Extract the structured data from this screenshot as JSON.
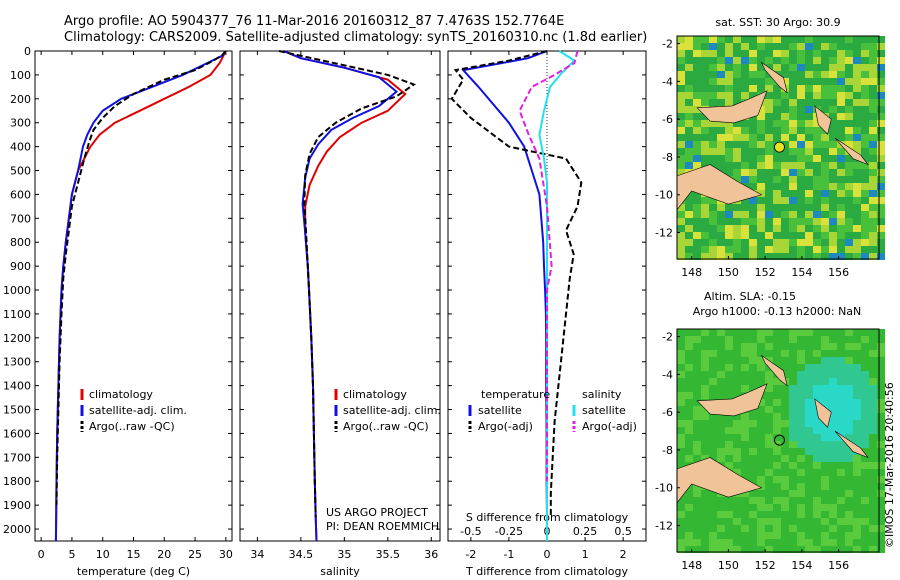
{
  "header": {
    "title_line1": "Argo profile: AO 5904377_76 11-Mar-2016 20160312_87 7.4763S 152.7764E",
    "title_line2": "Climatology: CARS2009. Satellite-adjusted climatology: synTS_20160310.nc (1.8d earlier)"
  },
  "colors": {
    "climatology": "#e00000",
    "satellite": "#1010e0",
    "argo": "#000000",
    "sat_salinity": "#20e0f0",
    "argo_salinity": "#e020e0"
  },
  "legend": {
    "climatology": "climatology",
    "satellite_clim": "satellite-adj. clim.",
    "argo_raw": "Argo(..raw -QC)",
    "temperature_head": "temperature",
    "salinity_head": "salinity",
    "satellite": "satellite",
    "argo_adj": "Argo(-adj)"
  },
  "credits": {
    "project": "US ARGO PROJECT",
    "pi": "PI: DEAN ROEMMICH",
    "stamp": "©IMOS 17-Mar-2016 20:40:56"
  },
  "chart_data": [
    {
      "type": "line",
      "id": "temperature",
      "xlabel": "temperature (deg C)",
      "xlim": [
        -1,
        31
      ],
      "xticks": [
        0,
        5,
        10,
        15,
        20,
        25,
        30
      ],
      "ylabel": "depth",
      "ylim": [
        2050,
        0
      ],
      "yticks": [
        0,
        100,
        200,
        300,
        400,
        500,
        600,
        700,
        800,
        900,
        1000,
        1100,
        1200,
        1300,
        1400,
        1500,
        1600,
        1700,
        1800,
        1900,
        2000
      ],
      "series": [
        {
          "name": "climatology",
          "color": "red",
          "x": [
            29.9,
            29.6,
            29,
            27.5,
            24,
            20,
            16,
            12,
            9.5,
            8,
            7,
            6,
            5,
            4.5,
            4,
            3.6,
            3.3,
            3,
            2.8,
            2.6,
            2.5,
            2.45,
            2.4
          ],
          "y": [
            0,
            20,
            50,
            100,
            150,
            200,
            250,
            300,
            350,
            400,
            450,
            500,
            600,
            700,
            800,
            900,
            1000,
            1200,
            1400,
            1600,
            1800,
            1950,
            2050
          ]
        },
        {
          "name": "satellite-adj. clim.",
          "color": "blue",
          "x": [
            29.9,
            29.4,
            27,
            23,
            18,
            13,
            10,
            8.5,
            7.5,
            6.8,
            6,
            5,
            4.5,
            4,
            3.6,
            3.3,
            3,
            2.8,
            2.6,
            2.5,
            2.45,
            2.4
          ],
          "y": [
            0,
            20,
            50,
            100,
            150,
            200,
            250,
            300,
            350,
            400,
            500,
            600,
            700,
            800,
            900,
            1000,
            1200,
            1400,
            1600,
            1800,
            1950,
            2050
          ]
        },
        {
          "name": "Argo",
          "color": "black",
          "dash": true,
          "x": [
            30,
            29.5,
            28,
            25,
            20,
            15,
            12,
            10,
            8.5,
            7.8,
            7,
            6,
            5,
            4.5,
            4,
            3.6,
            3.3,
            3,
            2.8,
            2.6,
            2.5
          ],
          "y": [
            0,
            15,
            40,
            80,
            120,
            180,
            230,
            280,
            330,
            380,
            450,
            550,
            650,
            750,
            850,
            950,
            1100,
            1300,
            1500,
            1700,
            1900
          ]
        }
      ]
    },
    {
      "type": "line",
      "id": "salinity",
      "xlabel": "salinity",
      "xlim": [
        33.8,
        36.1
      ],
      "xticks": [
        34,
        34.5,
        35,
        35.5,
        36
      ],
      "ylim": [
        2050,
        0
      ],
      "series": [
        {
          "name": "climatology",
          "color": "red",
          "x": [
            34.3,
            34.5,
            35,
            35.5,
            35.7,
            35.5,
            35.2,
            34.95,
            34.8,
            34.7,
            34.6,
            34.55,
            34.55,
            34.58,
            34.6,
            34.62,
            34.64,
            34.65,
            34.66,
            34.67,
            34.68
          ],
          "y": [
            0,
            30,
            70,
            120,
            180,
            250,
            300,
            360,
            420,
            480,
            560,
            650,
            760,
            900,
            1050,
            1200,
            1400,
            1600,
            1800,
            1950,
            2050
          ]
        },
        {
          "name": "satellite-adj. clim.",
          "color": "blue",
          "x": [
            34.3,
            34.5,
            35,
            35.4,
            35.6,
            35.4,
            35.1,
            34.85,
            34.7,
            34.6,
            34.55,
            34.52,
            34.55,
            34.58,
            34.6,
            34.62,
            34.64,
            34.65,
            34.66,
            34.67,
            34.68
          ],
          "y": [
            0,
            30,
            70,
            110,
            170,
            230,
            280,
            330,
            390,
            450,
            530,
            640,
            760,
            900,
            1050,
            1200,
            1400,
            1600,
            1800,
            1950,
            2050
          ]
        },
        {
          "name": "Argo",
          "color": "black",
          "dash": true,
          "x": [
            34.25,
            34.5,
            35,
            35.5,
            35.8,
            35.6,
            35.2,
            34.9,
            34.7,
            34.6,
            34.55,
            34.54,
            34.56,
            34.58,
            34.6,
            34.62,
            34.64,
            34.65,
            34.66,
            34.67
          ],
          "y": [
            0,
            20,
            60,
            100,
            140,
            190,
            240,
            300,
            360,
            430,
            520,
            640,
            760,
            900,
            1050,
            1200,
            1400,
            1600,
            1800,
            1950
          ]
        }
      ]
    },
    {
      "type": "line",
      "id": "difference",
      "xlabel": "T difference from climatology",
      "xlim": [
        -2.6,
        2.6
      ],
      "xticks": [
        -2,
        -1,
        0,
        1,
        2
      ],
      "x2label": "S difference from climatology",
      "x2ticks": [
        "-0.5",
        "-0.25",
        "0",
        "0.25",
        "0.5"
      ],
      "x2lim": [
        -0.65,
        0.65
      ],
      "ylim": [
        2050,
        0
      ],
      "series": [
        {
          "name": "temperature satellite",
          "color": "blue",
          "x": [
            0,
            -0.5,
            -1.5,
            -2.2,
            -1.8,
            -1.0,
            -0.6,
            -0.4,
            -0.3,
            -0.2,
            -0.15,
            -0.1,
            -0.08,
            -0.05,
            -0.03,
            -0.02,
            -0.02,
            -0.01,
            -0.01,
            0,
            0
          ],
          "y": [
            0,
            30,
            60,
            80,
            150,
            300,
            400,
            500,
            550,
            600,
            700,
            800,
            900,
            1000,
            1100,
            1200,
            1400,
            1600,
            1800,
            1950,
            2050
          ]
        },
        {
          "name": "temperature Argo(-adj)",
          "color": "black",
          "dash": true,
          "x": [
            0,
            -1,
            -2.4,
            -2.2,
            -2.5,
            -2,
            -1,
            0.5,
            0.9,
            0.8,
            0.5,
            0.7,
            0.6,
            0.5,
            0.4,
            0.3,
            0.2,
            0.15,
            0.1,
            0.1
          ],
          "y": [
            0,
            40,
            80,
            120,
            200,
            280,
            400,
            450,
            550,
            650,
            750,
            850,
            950,
            1100,
            1250,
            1400,
            1550,
            1700,
            1850,
            1950
          ]
        },
        {
          "name": "salinity satellite",
          "color": "cyan",
          "x": [
            0.08,
            0.18,
            0.1,
            0.02,
            -0.02,
            -0.05,
            -0.02,
            0,
            0,
            0,
            0,
            0,
            0,
            0,
            0,
            0
          ],
          "y": [
            0,
            40,
            90,
            150,
            250,
            350,
            450,
            550,
            700,
            900,
            1100,
            1300,
            1500,
            1700,
            1900,
            2050
          ]
        },
        {
          "name": "salinity Argo(-adj)",
          "color": "magenta",
          "dash": true,
          "x": [
            0.2,
            0.18,
            0.05,
            -0.1,
            -0.18,
            -0.12,
            -0.05,
            0,
            0.03,
            0,
            0,
            0,
            0,
            0
          ],
          "y": [
            0,
            50,
            100,
            150,
            250,
            350,
            450,
            650,
            900,
            1000,
            1200,
            1400,
            1600,
            1800
          ]
        }
      ]
    },
    {
      "type": "heatmap",
      "id": "sst_map",
      "title": "sat. SST: 30 Argo: 30.9",
      "xticks": [
        148,
        150,
        152,
        154,
        156
      ],
      "yticks": [
        -2,
        -4,
        -6,
        -8,
        -10,
        -12
      ],
      "xlim": [
        147.2,
        158.2
      ],
      "ylim": [
        -13.4,
        -1.6
      ],
      "argo_lon": 152.78,
      "argo_lat": -7.48
    },
    {
      "type": "heatmap",
      "id": "sla_map",
      "title": "Altim. SLA: -0.15",
      "subtitle": "Argo h1000: -0.13 h2000: NaN",
      "xticks": [
        148,
        150,
        152,
        154,
        156
      ],
      "yticks": [
        -2,
        -4,
        -6,
        -8,
        -10,
        -12
      ],
      "xlim": [
        147.2,
        158.2
      ],
      "ylim": [
        -13.4,
        -1.6
      ],
      "argo_lon": 152.78,
      "argo_lat": -7.48
    }
  ]
}
